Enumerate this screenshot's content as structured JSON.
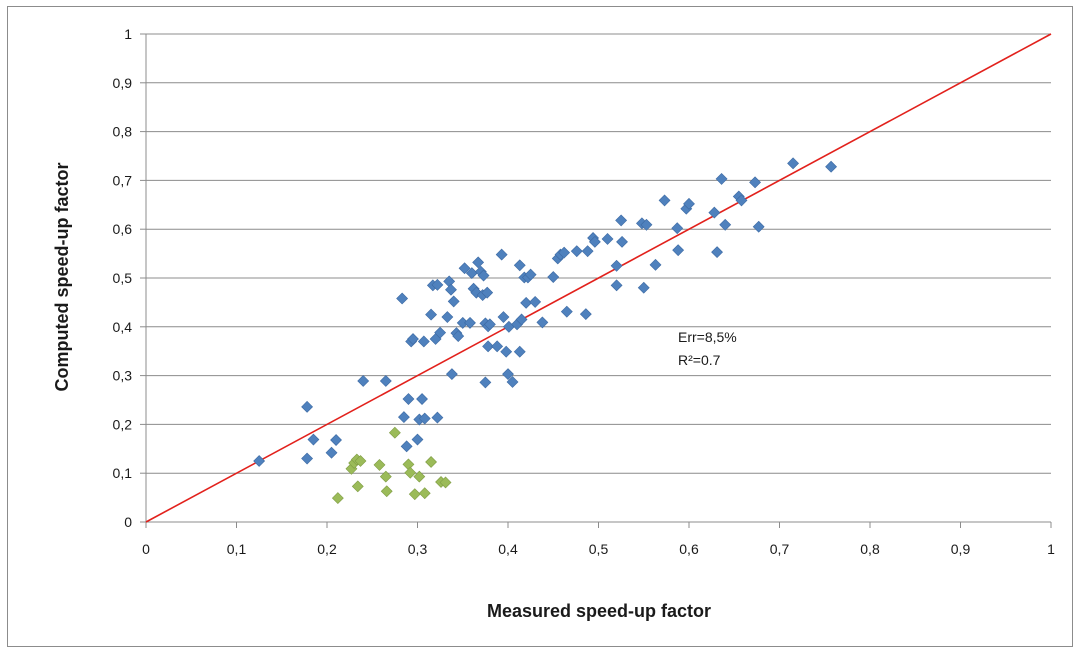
{
  "chart_data": {
    "type": "scatter",
    "xlabel": "Measured speed-up factor",
    "ylabel": "Computed speed-up factor",
    "xlim": [
      0,
      1
    ],
    "ylim": [
      0,
      1
    ],
    "x_ticks": [
      "0",
      "0,1",
      "0,2",
      "0,3",
      "0,4",
      "0,5",
      "0,6",
      "0,7",
      "0,8",
      "0,9",
      "1"
    ],
    "y_ticks": [
      "0",
      "0,1",
      "0,2",
      "0,3",
      "0,4",
      "0,5",
      "0,6",
      "0,7",
      "0,8",
      "0,9",
      "1"
    ],
    "grid": {
      "horizontal": true,
      "vertical": false
    },
    "legend": "none",
    "reference_line": {
      "from": [
        0,
        0
      ],
      "to": [
        1,
        1
      ],
      "color": "#e2211c"
    },
    "annotations": [
      "Err=8,5%",
      "R²=0.7"
    ],
    "series": [
      {
        "color": "#4f81bd",
        "marker": "diamond",
        "points": [
          [
            0.125,
            0.125
          ],
          [
            0.178,
            0.236
          ],
          [
            0.178,
            0.13
          ],
          [
            0.185,
            0.169
          ],
          [
            0.205,
            0.142
          ],
          [
            0.21,
            0.168
          ],
          [
            0.24,
            0.289
          ],
          [
            0.265,
            0.289
          ],
          [
            0.283,
            0.458
          ],
          [
            0.285,
            0.215
          ],
          [
            0.288,
            0.155
          ],
          [
            0.29,
            0.252
          ],
          [
            0.293,
            0.37
          ],
          [
            0.295,
            0.375
          ],
          [
            0.3,
            0.169
          ],
          [
            0.302,
            0.21
          ],
          [
            0.305,
            0.252
          ],
          [
            0.307,
            0.37
          ],
          [
            0.308,
            0.212
          ],
          [
            0.315,
            0.425
          ],
          [
            0.317,
            0.485
          ],
          [
            0.32,
            0.375
          ],
          [
            0.322,
            0.486
          ],
          [
            0.322,
            0.214
          ],
          [
            0.325,
            0.388
          ],
          [
            0.333,
            0.42
          ],
          [
            0.335,
            0.493
          ],
          [
            0.337,
            0.476
          ],
          [
            0.338,
            0.303
          ],
          [
            0.34,
            0.452
          ],
          [
            0.343,
            0.387
          ],
          [
            0.345,
            0.381
          ],
          [
            0.35,
            0.408
          ],
          [
            0.352,
            0.52
          ],
          [
            0.358,
            0.408
          ],
          [
            0.36,
            0.51
          ],
          [
            0.362,
            0.478
          ],
          [
            0.365,
            0.47
          ],
          [
            0.367,
            0.532
          ],
          [
            0.37,
            0.513
          ],
          [
            0.372,
            0.465
          ],
          [
            0.373,
            0.505
          ],
          [
            0.375,
            0.407
          ],
          [
            0.375,
            0.286
          ],
          [
            0.377,
            0.47
          ],
          [
            0.378,
            0.401
          ],
          [
            0.378,
            0.36
          ],
          [
            0.38,
            0.405
          ],
          [
            0.388,
            0.36
          ],
          [
            0.393,
            0.548
          ],
          [
            0.395,
            0.42
          ],
          [
            0.398,
            0.349
          ],
          [
            0.4,
            0.303
          ],
          [
            0.401,
            0.4
          ],
          [
            0.405,
            0.287
          ],
          [
            0.41,
            0.405
          ],
          [
            0.413,
            0.349
          ],
          [
            0.413,
            0.526
          ],
          [
            0.415,
            0.415
          ],
          [
            0.418,
            0.501
          ],
          [
            0.42,
            0.449
          ],
          [
            0.422,
            0.501
          ],
          [
            0.425,
            0.507
          ],
          [
            0.43,
            0.451
          ],
          [
            0.438,
            0.409
          ],
          [
            0.45,
            0.502
          ],
          [
            0.455,
            0.54
          ],
          [
            0.458,
            0.548
          ],
          [
            0.462,
            0.552
          ],
          [
            0.465,
            0.431
          ],
          [
            0.476,
            0.555
          ],
          [
            0.486,
            0.426
          ],
          [
            0.488,
            0.555
          ],
          [
            0.494,
            0.582
          ],
          [
            0.496,
            0.574
          ],
          [
            0.51,
            0.58
          ],
          [
            0.52,
            0.525
          ],
          [
            0.52,
            0.485
          ],
          [
            0.525,
            0.618
          ],
          [
            0.526,
            0.574
          ],
          [
            0.548,
            0.612
          ],
          [
            0.55,
            0.48
          ],
          [
            0.553,
            0.609
          ],
          [
            0.563,
            0.527
          ],
          [
            0.573,
            0.659
          ],
          [
            0.587,
            0.602
          ],
          [
            0.588,
            0.557
          ],
          [
            0.597,
            0.642
          ],
          [
            0.6,
            0.652
          ],
          [
            0.628,
            0.634
          ],
          [
            0.631,
            0.553
          ],
          [
            0.636,
            0.703
          ],
          [
            0.64,
            0.609
          ],
          [
            0.655,
            0.667
          ],
          [
            0.658,
            0.659
          ],
          [
            0.673,
            0.696
          ],
          [
            0.677,
            0.605
          ],
          [
            0.715,
            0.735
          ],
          [
            0.757,
            0.728
          ]
        ]
      },
      {
        "color": "#9bbb59",
        "marker": "diamond",
        "points": [
          [
            0.212,
            0.049
          ],
          [
            0.227,
            0.109
          ],
          [
            0.23,
            0.121
          ],
          [
            0.233,
            0.128
          ],
          [
            0.234,
            0.073
          ],
          [
            0.237,
            0.125
          ],
          [
            0.258,
            0.117
          ],
          [
            0.265,
            0.093
          ],
          [
            0.266,
            0.063
          ],
          [
            0.275,
            0.183
          ],
          [
            0.29,
            0.118
          ],
          [
            0.292,
            0.101
          ],
          [
            0.297,
            0.057
          ],
          [
            0.302,
            0.093
          ],
          [
            0.308,
            0.059
          ],
          [
            0.315,
            0.123
          ],
          [
            0.326,
            0.082
          ],
          [
            0.331,
            0.081
          ]
        ]
      }
    ]
  }
}
